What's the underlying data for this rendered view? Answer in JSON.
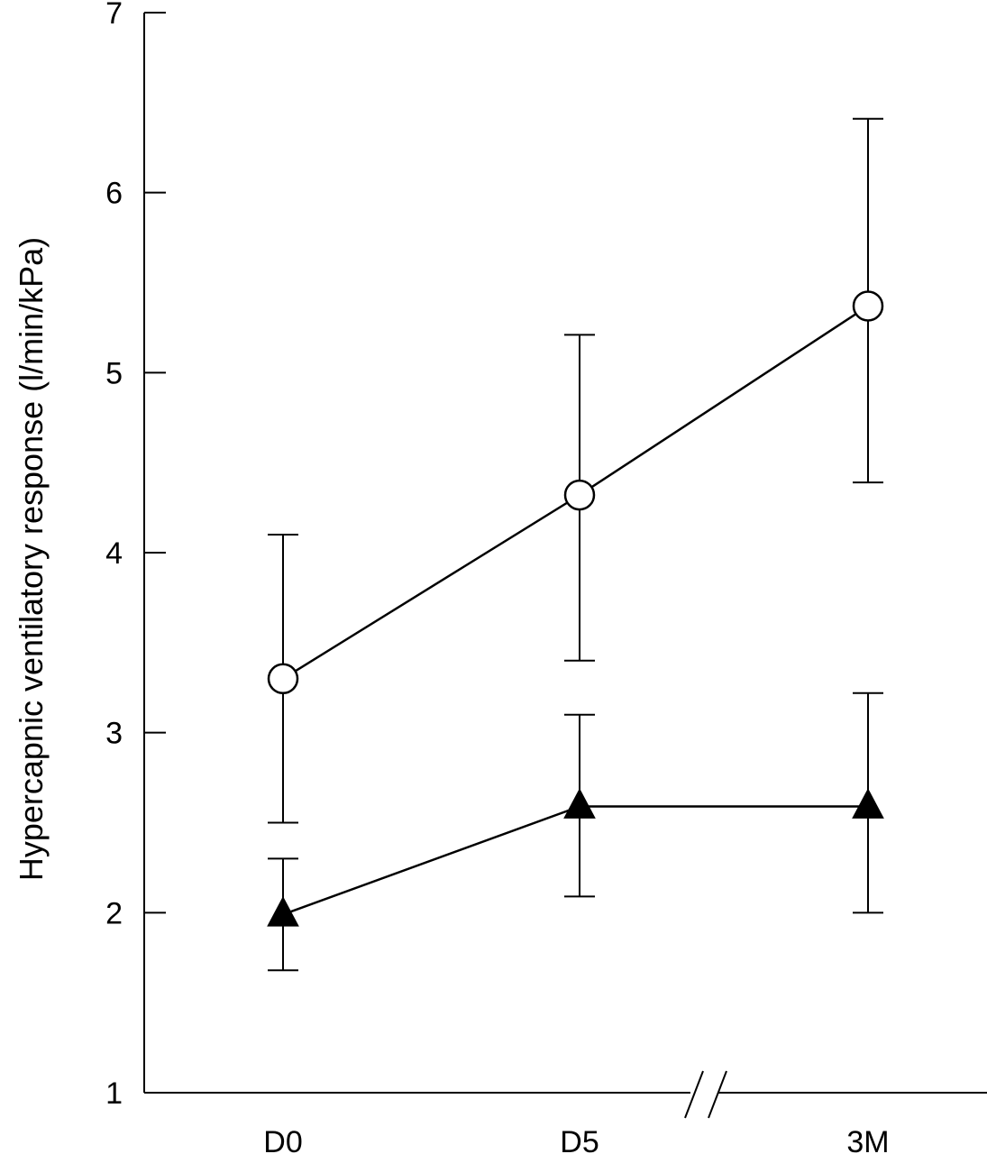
{
  "chart_data": {
    "type": "line",
    "title": "",
    "xlabel": "",
    "ylabel": "Hypercapnic ventilatory response (l/min/kPa)",
    "categories": [
      "D0",
      "D5",
      "3M"
    ],
    "ylim": [
      1,
      7
    ],
    "yticks": [
      "1",
      "2",
      "3",
      "4",
      "5",
      "6",
      "7"
    ],
    "axis_break": "between D5 and 3M",
    "grid": false,
    "legend": "none",
    "series": [
      {
        "marker": "open-circle",
        "color": "#000000",
        "values": [
          3.3,
          4.32,
          5.37
        ],
        "error_low": [
          2.5,
          3.4,
          4.39
        ],
        "error_high": [
          4.1,
          5.21,
          6.41
        ]
      },
      {
        "marker": "filled-triangle",
        "color": "#000000",
        "values": [
          1.99,
          2.59,
          2.59
        ],
        "error_low": [
          1.68,
          2.09,
          2.0
        ],
        "error_high": [
          2.3,
          3.1,
          3.22
        ]
      }
    ]
  }
}
